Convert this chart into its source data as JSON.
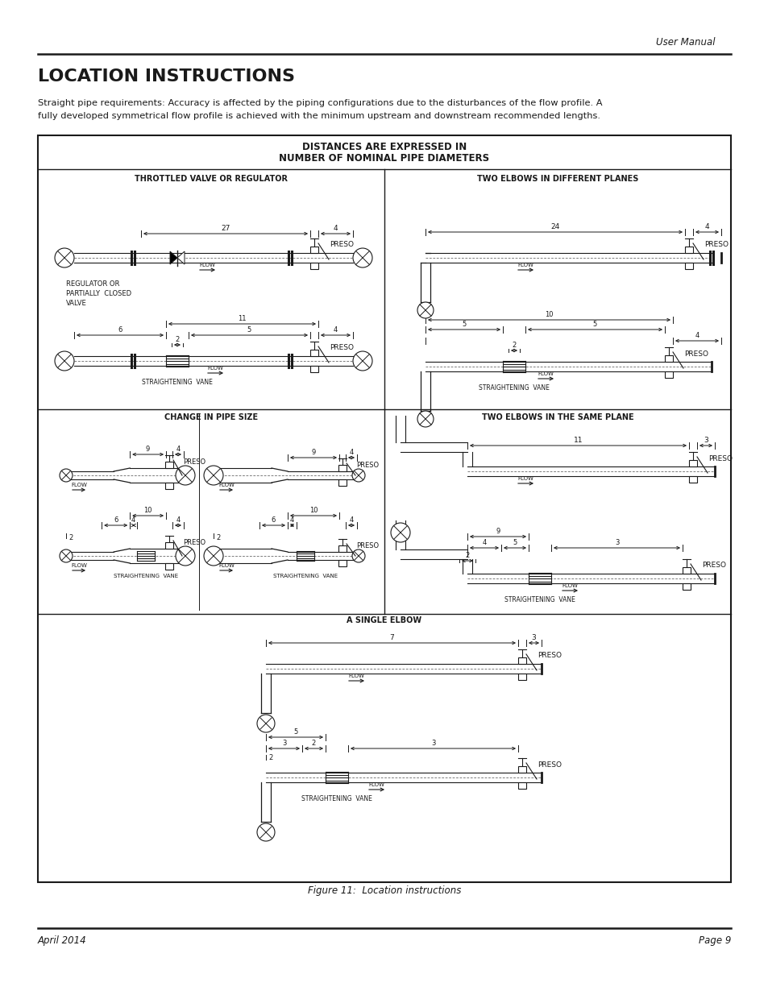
{
  "title": "LOCATION INSTRUCTIONS",
  "subtitle_line1": "Straight pipe requirements: Accuracy is affected by the piping configurations due to the disturbances of the flow profile. A",
  "subtitle_line2": "fully developed symmetrical flow profile is achieved with the minimum upstream and downstream recommended lengths.",
  "header_text": "User Manual",
  "footer_left": "April 2014",
  "footer_right": "Page 9",
  "figure_caption": "Figure 11:  Location instructions",
  "box_title_line1": "DISTANCES ARE EXPRESSED IN",
  "box_title_line2": "NUMBER OF NOMINAL PIPE DIAMETERS",
  "section_titles": [
    "THROTTLED VALVE OR REGULATOR",
    "TWO ELBOWS IN DIFFERENT PLANES",
    "CHANGE IN PIPE SIZE",
    "TWO ELBOWS IN THE SAME PLANE",
    "A SINGLE ELBOW"
  ],
  "bg": "#ffffff",
  "tc": "#1a1a1a",
  "lc": "#1a1a1a"
}
